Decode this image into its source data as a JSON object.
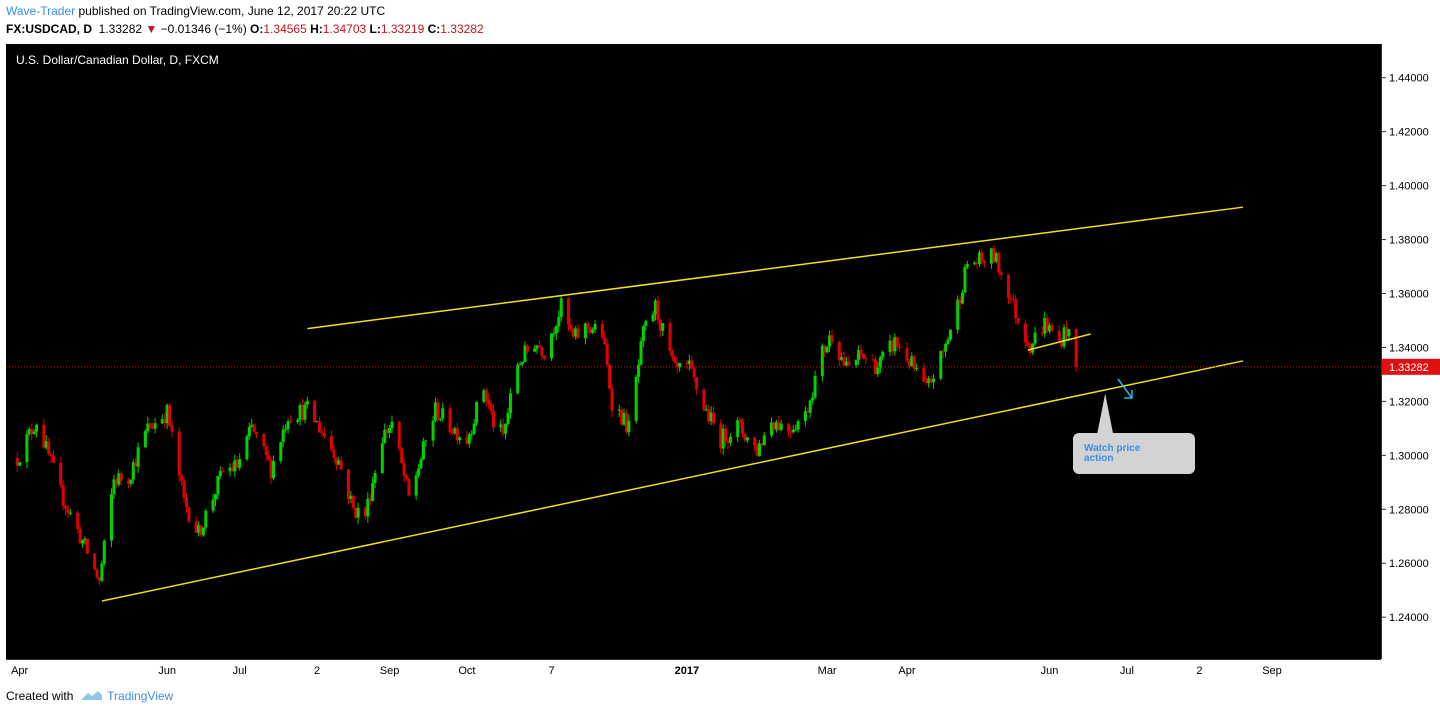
{
  "header": {
    "author": "Wave-Trader",
    "published_text": "published on TradingView.com, June 12, 2017 20:22 UTC",
    "symbol": "FX:USDCAD, D",
    "price": "1.33282",
    "change": "−0.01346 (−1%)",
    "o_label": "O:",
    "o_value": "1.34565",
    "h_label": "H:",
    "h_value": "1.34703",
    "l_label": "L:",
    "l_value": "1.33219",
    "c_label": "C:",
    "c_value": "1.33282"
  },
  "footer": {
    "created_with": "Created with",
    "brand": "TradingView"
  },
  "colors": {
    "up": "#00d400",
    "down": "#e00000",
    "trendline": "#f0e020",
    "background": "#000000",
    "price_marker": "#e01010",
    "annotation_arrow": "#20c0e0",
    "callout": "#d3d3d3"
  },
  "chart_data": {
    "type": "candlestick",
    "title": "U.S. Dollar/Canadian Dollar, D, FXCM",
    "y_ticks": [
      "1.44000",
      "1.42000",
      "1.40000",
      "1.38000",
      "1.36000",
      "1.34000",
      "1.32000",
      "1.30000",
      "1.28000",
      "1.26000",
      "1.24000"
    ],
    "ylim": [
      1.2245,
      1.4525
    ],
    "x_ticks": [
      {
        "label": "Apr",
        "date": "2016-04-01"
      },
      {
        "label": "Jun",
        "date": "2016-06-01"
      },
      {
        "label": "Jul",
        "date": "2016-07-01"
      },
      {
        "label": "2",
        "date": "2016-08-02"
      },
      {
        "label": "Sep",
        "date": "2016-09-01"
      },
      {
        "label": "Oct",
        "date": "2016-10-03"
      },
      {
        "label": "7",
        "date": "2016-11-07"
      },
      {
        "label": "2017",
        "date": "2017-01-02"
      },
      {
        "label": "Mar",
        "date": "2017-03-01"
      },
      {
        "label": "Apr",
        "date": "2017-04-03"
      },
      {
        "label": "Jun",
        "date": "2017-06-01"
      },
      {
        "label": "Jul",
        "date": "2017-07-03"
      },
      {
        "label": "2",
        "date": "2017-08-02"
      },
      {
        "label": "Sep",
        "date": "2017-09-01"
      }
    ],
    "current_price": "1.33282",
    "price_path": [
      [
        "2016-03-31",
        1.299
      ],
      [
        "2016-04-08",
        1.313
      ],
      [
        "2016-04-18",
        1.286
      ],
      [
        "2016-04-28",
        1.266
      ],
      [
        "2016-05-04",
        1.253
      ],
      [
        "2016-05-10",
        1.291
      ],
      [
        "2016-05-16",
        1.292
      ],
      [
        "2016-05-24",
        1.31
      ],
      [
        "2016-06-01",
        1.316
      ],
      [
        "2016-06-08",
        1.283
      ],
      [
        "2016-06-14",
        1.271
      ],
      [
        "2016-06-24",
        1.294
      ],
      [
        "2016-06-30",
        1.296
      ],
      [
        "2016-07-06",
        1.31
      ],
      [
        "2016-07-14",
        1.295
      ],
      [
        "2016-07-21",
        1.315
      ],
      [
        "2016-07-29",
        1.317
      ],
      [
        "2016-08-04",
        1.309
      ],
      [
        "2016-08-11",
        1.298
      ],
      [
        "2016-08-17",
        1.28
      ],
      [
        "2016-08-22",
        1.278
      ],
      [
        "2016-08-29",
        1.307
      ],
      [
        "2016-09-02",
        1.312
      ],
      [
        "2016-09-09",
        1.284
      ],
      [
        "2016-09-14",
        1.299
      ],
      [
        "2016-09-20",
        1.317
      ],
      [
        "2016-09-26",
        1.311
      ],
      [
        "2016-10-03",
        1.306
      ],
      [
        "2016-10-10",
        1.325
      ],
      [
        "2016-10-14",
        1.312
      ],
      [
        "2016-10-18",
        1.307
      ],
      [
        "2016-10-24",
        1.334
      ],
      [
        "2016-10-31",
        1.342
      ],
      [
        "2016-11-04",
        1.339
      ],
      [
        "2016-11-11",
        1.355
      ],
      [
        "2016-11-16",
        1.343
      ],
      [
        "2016-11-22",
        1.348
      ],
      [
        "2016-11-28",
        1.345
      ],
      [
        "2016-12-02",
        1.32
      ],
      [
        "2016-12-09",
        1.31
      ],
      [
        "2016-12-15",
        1.345
      ],
      [
        "2016-12-20",
        1.355
      ],
      [
        "2016-12-28",
        1.331
      ],
      [
        "2017-01-03",
        1.332
      ],
      [
        "2017-01-09",
        1.318
      ],
      [
        "2017-01-16",
        1.306
      ],
      [
        "2017-01-23",
        1.311
      ],
      [
        "2017-01-31",
        1.302
      ],
      [
        "2017-02-06",
        1.313
      ],
      [
        "2017-02-13",
        1.31
      ],
      [
        "2017-02-20",
        1.315
      ],
      [
        "2017-02-27",
        1.338
      ],
      [
        "2017-03-03",
        1.345
      ],
      [
        "2017-03-09",
        1.332
      ],
      [
        "2017-03-15",
        1.337
      ],
      [
        "2017-03-22",
        1.333
      ],
      [
        "2017-03-29",
        1.342
      ],
      [
        "2017-04-04",
        1.335
      ],
      [
        "2017-04-11",
        1.324
      ],
      [
        "2017-04-18",
        1.338
      ],
      [
        "2017-04-24",
        1.356
      ],
      [
        "2017-04-28",
        1.371
      ],
      [
        "2017-05-04",
        1.372
      ],
      [
        "2017-05-09",
        1.374
      ],
      [
        "2017-05-15",
        1.361
      ],
      [
        "2017-05-19",
        1.35
      ],
      [
        "2017-05-24",
        1.341
      ],
      [
        "2017-05-30",
        1.349
      ],
      [
        "2017-06-05",
        1.342
      ],
      [
        "2017-06-08",
        1.347
      ],
      [
        "2017-06-12",
        1.333
      ]
    ],
    "trendlines": [
      {
        "name": "upper channel",
        "from": [
          "2016-07-29",
          1.347
        ],
        "to": [
          "2017-08-20",
          1.392
        ]
      },
      {
        "name": "lower channel",
        "from": [
          "2016-05-05",
          1.246
        ],
        "to": [
          "2017-08-20",
          1.335
        ]
      },
      {
        "name": "short support",
        "from": [
          "2017-05-23",
          1.339
        ],
        "to": [
          "2017-06-18",
          1.345
        ]
      }
    ],
    "annotations": [
      {
        "type": "callout",
        "text": "Watch price action",
        "anchor": [
          "2017-06-24",
          1.324
        ]
      }
    ]
  }
}
